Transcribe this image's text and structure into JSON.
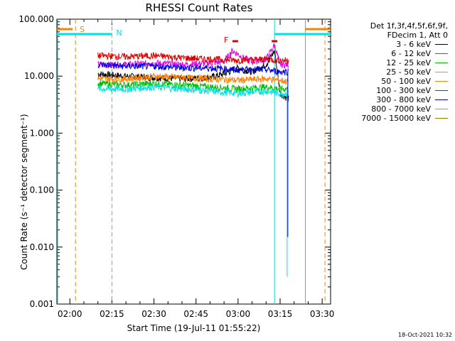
{
  "chart_data": {
    "type": "line",
    "title": "RHESSI Count Rates",
    "ylabel": "Count Rate (s⁻¹ detector segment⁻¹)",
    "xlabel": "Start Time (19-Jul-11 01:55:22)",
    "yscale": "log",
    "ylim": [
      0.001,
      100
    ],
    "xlim": [
      "01:55:22",
      "03:33:00"
    ],
    "y_ticks": [
      "100.000",
      "10.000",
      "1.000",
      "0.100",
      "0.010",
      "0.001"
    ],
    "x_ticks": [
      "02:00",
      "02:15",
      "02:30",
      "02:45",
      "03:00",
      "03:15",
      "03:30"
    ],
    "legend_header": [
      "Det 1f,3f,4f,5f,6f,9f,",
      "FDecim 1, Att 0"
    ],
    "legend_position": "right",
    "series": [
      {
        "name": "3 - 6 keV",
        "color": "#000000",
        "x": [
          "02:10",
          "02:20",
          "02:30",
          "02:40",
          "02:50",
          "02:55",
          "03:00",
          "03:05",
          "03:10",
          "03:13",
          "03:15",
          "03:18"
        ],
        "values": [
          11,
          10,
          9.5,
          9,
          9.5,
          11,
          14,
          12,
          16,
          28,
          5,
          4
        ]
      },
      {
        "name": "6 - 12 keV",
        "color": "#e000e0",
        "x": [
          "02:10",
          "02:20",
          "02:30",
          "02:40",
          "02:50",
          "02:55",
          "02:58",
          "03:02",
          "03:05",
          "03:10",
          "03:13",
          "03:15",
          "03:18"
        ],
        "values": [
          16,
          16,
          17,
          16,
          17,
          18,
          28,
          21,
          18,
          20,
          35,
          16,
          16
        ]
      },
      {
        "name": "12 - 25 keV",
        "color": "#00c000",
        "x": [
          "02:10",
          "02:20",
          "02:30",
          "02:40",
          "02:50",
          "03:00",
          "03:10",
          "03:15",
          "03:18"
        ],
        "values": [
          7.5,
          7,
          7.5,
          7,
          6.5,
          6,
          6.5,
          6,
          6
        ]
      },
      {
        "name": "25 - 50 keV",
        "color": "#00e0e0",
        "x": [
          "02:10",
          "02:20",
          "02:30",
          "02:40",
          "02:50",
          "03:00",
          "03:10",
          "03:15",
          "03:18"
        ],
        "values": [
          6,
          6,
          6.5,
          6,
          5.5,
          5,
          5.5,
          5,
          5
        ]
      },
      {
        "name": "50 - 100 keV",
        "color": "#ff8000",
        "x": [
          "02:10",
          "02:20",
          "02:30",
          "02:40",
          "02:50",
          "03:00",
          "03:10",
          "03:15",
          "03:18"
        ],
        "values": [
          9,
          9,
          10,
          9.5,
          9,
          8.5,
          9,
          8.5,
          8
        ]
      },
      {
        "name": "100 - 300 keV",
        "color": "#e00000",
        "x": [
          "02:10",
          "02:20",
          "02:30",
          "02:40",
          "02:50",
          "03:00",
          "03:10",
          "03:15",
          "03:18"
        ],
        "values": [
          23,
          22,
          23,
          21,
          20,
          19,
          20,
          19,
          19
        ]
      },
      {
        "name": "300 - 800 keV",
        "color": "#0000e0",
        "x": [
          "02:10",
          "02:20",
          "02:30",
          "02:40",
          "02:50",
          "03:00",
          "03:10",
          "03:15",
          "03:18"
        ],
        "values": [
          16,
          15,
          15,
          14,
          14,
          13,
          13,
          12,
          12
        ]
      },
      {
        "name": "800 - 7000 keV",
        "color": "#ff8000",
        "x": [],
        "values": []
      },
      {
        "name": "7000 - 15000 keV",
        "color": "#808000",
        "x": [],
        "values": []
      }
    ],
    "annotations": [
      {
        "text": "S",
        "x": "02:02",
        "color": "#ff8000"
      },
      {
        "text": "N",
        "x": "02:15",
        "color": "#00e0e0"
      },
      {
        "text": "F",
        "x": "02:58",
        "color": "#e00000"
      }
    ]
  },
  "footer_text": "18-Oct-2021 10:32"
}
